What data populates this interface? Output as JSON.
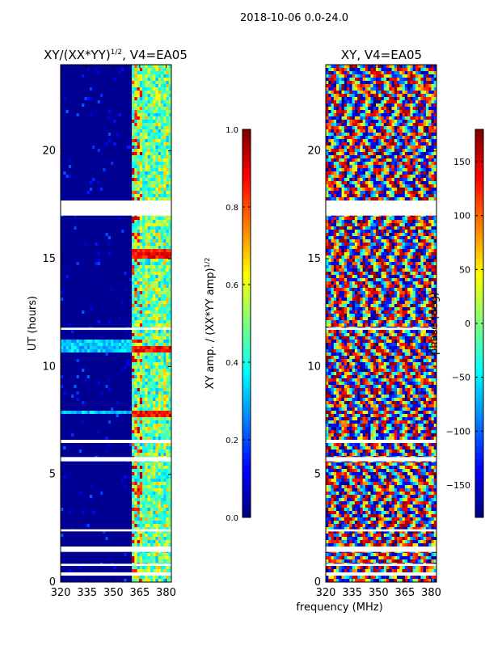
{
  "figure": {
    "suptitle": "2018-10-06 0.0-24.0",
    "xlabel": "frequency (MHz)"
  },
  "colors": {
    "jet": [
      "#00007f",
      "#0000ff",
      "#007fff",
      "#00ffff",
      "#7fff7f",
      "#ffff00",
      "#ff7f00",
      "#ff0000",
      "#7f0000"
    ],
    "white": "#ffffff"
  },
  "chart_data": [
    {
      "type": "heatmap",
      "title_prefix": "XY/(XX*YY)",
      "title_exp": "1/2",
      "title_suffix": ", V4=EA05",
      "xlabel": "frequency (MHz)",
      "ylabel": "UT (hours)",
      "xlim": [
        320,
        383
      ],
      "ylim": [
        0,
        24
      ],
      "xticks": [
        320,
        335,
        350,
        365,
        380
      ],
      "yticks": [
        0,
        5,
        10,
        15,
        20
      ],
      "colorbar": {
        "label_main": "XY amp. / (XX*YY amp)",
        "label_exp": "1/2",
        "range": [
          0.0,
          1.0
        ],
        "ticks": [
          "0.0",
          "0.2",
          "0.4",
          "0.6",
          "0.8",
          "1.0"
        ],
        "tick_values": [
          0.0,
          0.2,
          0.4,
          0.6,
          0.8,
          1.0
        ]
      },
      "flagged_hours": [
        [
          17.0,
          17.7
        ],
        [
          11.7,
          11.8
        ],
        [
          6.45,
          6.6
        ],
        [
          5.6,
          5.8
        ],
        [
          2.35,
          2.45
        ],
        [
          1.4,
          1.65
        ],
        [
          0.75,
          0.85
        ],
        [
          0.3,
          0.45
        ]
      ]
    },
    {
      "type": "heatmap",
      "title": "XY, V4=EA05",
      "xlabel": "frequency (MHz)",
      "ylabel": "",
      "xlim": [
        320,
        383
      ],
      "ylim": [
        0,
        24
      ],
      "xticks": [
        320,
        335,
        350,
        365,
        380
      ],
      "yticks": [
        0,
        5,
        10,
        15,
        20
      ],
      "colorbar": {
        "label_main": "phase (deg)",
        "range": [
          -180,
          180
        ],
        "ticks": [
          "−150",
          "−100",
          "−50",
          "0",
          "50",
          "100",
          "150"
        ],
        "tick_values": [
          -150,
          -100,
          -50,
          0,
          50,
          100,
          150
        ]
      },
      "flagged_hours": [
        [
          17.0,
          17.7
        ],
        [
          11.7,
          11.8
        ],
        [
          6.45,
          6.6
        ],
        [
          5.6,
          5.8
        ],
        [
          2.35,
          2.45
        ],
        [
          1.4,
          1.65
        ],
        [
          0.75,
          0.85
        ],
        [
          0.3,
          0.45
        ]
      ]
    }
  ]
}
